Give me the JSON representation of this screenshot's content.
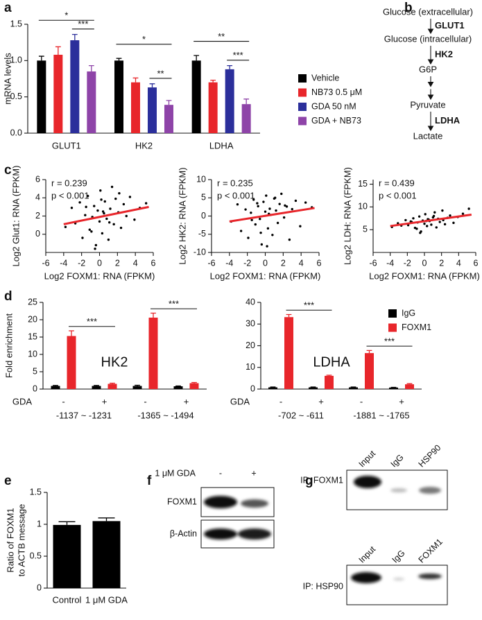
{
  "panel_labels": [
    "a",
    "b",
    "c",
    "d",
    "e",
    "f",
    "g"
  ],
  "pathway": {
    "steps": [
      "Glucose (extracellular)",
      "Glucose (intracellular)",
      "G6P",
      "Pyruvate",
      "Lactate"
    ],
    "reactions": [
      {
        "from": 0,
        "to": 1,
        "enzyme": "GLUT1"
      },
      {
        "from": 1,
        "to": 2,
        "enzyme": "HK2"
      },
      {
        "from": 2,
        "to": 3
      },
      {
        "from": 3,
        "to": 4,
        "enzyme": "LDHA"
      }
    ]
  },
  "blot_f": {
    "treatment": "1 μM GDA",
    "lanes": [
      "-",
      "+"
    ],
    "rows": [
      "FOXM1",
      "β-Actin"
    ]
  },
  "blot_g": {
    "panels": [
      {
        "label": "IP: FOXM1",
        "lanes": [
          "Input",
          "IgG",
          "HSP90"
        ]
      },
      {
        "label": "IP: HSP90",
        "lanes": [
          "Input",
          "IgG",
          "FOXM1"
        ]
      }
    ]
  },
  "chart_data": [
    {
      "type": "bar",
      "ylabel": "mRNA levels",
      "categories": [
        "GLUT1",
        "HK2",
        "LDHA"
      ],
      "series": [
        {
          "name": "Vehicle",
          "color": "#000000",
          "values": [
            1.0,
            1.0,
            1.0
          ],
          "errors": [
            0.06,
            0.03,
            0.07
          ]
        },
        {
          "name": "NB73 0.5 μM",
          "color": "#e8262b",
          "values": [
            1.08,
            0.7,
            0.7
          ],
          "errors": [
            0.11,
            0.06,
            0.03
          ]
        },
        {
          "name": "GDA 50 nM",
          "color": "#2b2f9b",
          "values": [
            1.28,
            0.63,
            0.88
          ],
          "errors": [
            0.08,
            0.05,
            0.05
          ]
        },
        {
          "name": "GDA + NB73",
          "color": "#8e44a8",
          "values": [
            0.85,
            0.39,
            0.4
          ],
          "errors": [
            0.08,
            0.06,
            0.07
          ]
        }
      ],
      "ylim": [
        0,
        1.5
      ],
      "yticks": [
        {
          "value": 0,
          "label": "0.0"
        },
        0.5,
        {
          "value": 1,
          "label": "1.0"
        },
        1.5
      ],
      "legend": "right",
      "significance": [
        {
          "category": 0,
          "series": [
            0,
            3
          ],
          "label": "*"
        },
        {
          "category": 0,
          "series": [
            2,
            3
          ],
          "label": "***"
        },
        {
          "category": 1,
          "series": [
            0,
            3
          ],
          "label": "*"
        },
        {
          "category": 1,
          "series": [
            2,
            3
          ],
          "label": "**"
        },
        {
          "category": 2,
          "series": [
            0,
            3
          ],
          "label": "**"
        },
        {
          "category": 2,
          "series": [
            2,
            3
          ],
          "label": "***"
        }
      ]
    },
    {
      "type": "scatter",
      "xlabel": "Log2 FOXM1: RNA (FPKM)",
      "ylabel": "Log2 Glut1: RNA (FPKM)",
      "annotations": [
        "r = 0.239",
        "p < 0.001"
      ],
      "color": "#000000",
      "x": [
        -3.8,
        -3.1,
        -2.7,
        -2.2,
        -1.9,
        -1.6,
        -1.3,
        -1.1,
        -0.8,
        -0.6,
        -0.4,
        -0.2,
        0,
        0.1,
        0.3,
        0.5,
        0.6,
        0.8,
        1,
        1.2,
        1.4,
        1.6,
        1.8,
        2.1,
        2.4,
        2.7,
        3,
        3.4,
        3.9,
        4.5,
        5.2,
        -0.5,
        0.4,
        1.1,
        -1.5,
        2.2,
        0.2,
        -0.9
      ],
      "y": [
        0.8,
        2.9,
        1.2,
        3.5,
        -0.4,
        2.1,
        4.2,
        0.5,
        1.9,
        3.1,
        -1.2,
        2.6,
        1.4,
        4.8,
        0.1,
        2.3,
        3.6,
        1.7,
        -0.6,
        2.8,
        5.2,
        1.1,
        3.9,
        2.4,
        0.7,
        3.3,
        2.0,
        4.1,
        1.6,
        2.9,
        3.4,
        -1.6,
        2.5,
        1.3,
        3.0,
        4.5,
        3.8,
        0.3
      ],
      "trend": {
        "x": [
          -4,
          5.5
        ],
        "y": [
          1.1,
          3.0
        ],
        "color": "#e8262b"
      },
      "xlim": [
        -6,
        6
      ],
      "xticks": [
        -6,
        -4,
        -2,
        0,
        2,
        4,
        6
      ],
      "ylim": [
        -2,
        6
      ],
      "yticks": [
        0,
        2,
        4,
        6
      ]
    },
    {
      "type": "scatter",
      "xlabel": "Log2 FOXM1: RNA (FPKM)",
      "ylabel": "Log2 HK2: RNA (FPKM)",
      "annotations": [
        "r = 0.235",
        "p < 0.001"
      ],
      "color": "#000000",
      "x": [
        -3.8,
        -3.1,
        -2.7,
        -2.2,
        -1.9,
        -1.6,
        -1.3,
        -1.1,
        -0.8,
        -0.6,
        -0.4,
        -0.2,
        0,
        0.1,
        0.3,
        0.5,
        0.6,
        0.8,
        1,
        1.2,
        1.4,
        1.6,
        1.8,
        2.1,
        2.4,
        2.7,
        3,
        3.4,
        3.9,
        4.5,
        5.2,
        -0.5,
        0.4,
        1.1,
        -1.5,
        2.2,
        0.2,
        -0.9
      ],
      "y": [
        -1.5,
        3.2,
        -4.1,
        1.8,
        -6.0,
        0.9,
        4.5,
        -2.3,
        2.7,
        -0.8,
        -7.8,
        3.9,
        1.2,
        5.6,
        -3.4,
        2.0,
        0.3,
        -5.2,
        4.8,
        1.5,
        -1.9,
        3.3,
        6.1,
        -0.4,
        2.6,
        -6.5,
        1.9,
        4.2,
        -2.8,
        3.7,
        2.4,
        -4.6,
        0.6,
        5.0,
        -1.1,
        2.9,
        -8.3,
        3.5
      ],
      "trend": {
        "x": [
          -4,
          5.5
        ],
        "y": [
          -1.5,
          2.2
        ],
        "color": "#e8262b"
      },
      "xlim": [
        -6,
        6
      ],
      "xticks": [
        -6,
        -4,
        -2,
        0,
        2,
        4,
        6
      ],
      "ylim": [
        -10,
        10
      ],
      "yticks": [
        -10,
        -5,
        0,
        5,
        10
      ]
    },
    {
      "type": "scatter",
      "xlabel": "Log2 FOXM1: RNA (FPKM)",
      "ylabel": "Log2 LDH: RNA (FPKM)",
      "annotations": [
        "r = 0.439",
        "p < 0.001"
      ],
      "color": "#000000",
      "x": [
        -3.8,
        -3.1,
        -2.7,
        -2.2,
        -1.9,
        -1.6,
        -1.3,
        -1.1,
        -0.8,
        -0.6,
        -0.4,
        -0.2,
        0,
        0.1,
        0.3,
        0.5,
        0.6,
        0.8,
        1,
        1.2,
        1.4,
        1.6,
        1.8,
        2.1,
        2.4,
        2.7,
        3,
        3.4,
        3.9,
        4.5,
        5.2,
        -0.5,
        0.4,
        1.1,
        -1.5,
        2.2,
        0.2,
        -0.9
      ],
      "y": [
        5.6,
        6.4,
        5.9,
        7.1,
        6.0,
        6.8,
        7.5,
        5.4,
        6.6,
        7.9,
        4.6,
        7.0,
        6.3,
        8.4,
        5.8,
        7.2,
        6.9,
        6.1,
        7.7,
        8.8,
        5.5,
        7.4,
        6.7,
        9.2,
        6.2,
        7.6,
        8.1,
        6.5,
        7.8,
        8.5,
        9.6,
        4.3,
        7.3,
        8.0,
        6.7,
        7.1,
        6.9,
        5.2
      ],
      "trend": {
        "x": [
          -4,
          5.5
        ],
        "y": [
          5.8,
          8.3
        ],
        "color": "#e8262b"
      },
      "xlim": [
        -6,
        6
      ],
      "xticks": [
        -6,
        -4,
        -2,
        0,
        2,
        4,
        6
      ],
      "ylim": [
        0,
        16
      ],
      "yticks": [
        5,
        10,
        15
      ]
    },
    {
      "type": "bar",
      "ylabel": "Fold enrichment",
      "gene": "HK2",
      "row_label": "GDA",
      "categories": [
        "-",
        "+",
        "-",
        "+"
      ],
      "groups": [
        {
          "label": "-1137 ~ -1231",
          "categories": [
            0,
            1
          ]
        },
        {
          "label": "-1365 ~ -1494",
          "categories": [
            2,
            3
          ]
        }
      ],
      "series": [
        {
          "color": "#000000",
          "values": [
            0.9,
            0.9,
            0.9,
            0.8
          ],
          "errors": [
            0.15,
            0.15,
            0.2,
            0.1
          ]
        },
        {
          "color": "#e8262b",
          "values": [
            15.3,
            1.5,
            20.6,
            1.7
          ],
          "errors": [
            1.5,
            0.2,
            1.3,
            0.2
          ]
        }
      ],
      "ylim": [
        0,
        25
      ],
      "yticks": [
        0,
        5,
        10,
        15,
        20,
        25
      ],
      "significance": [
        {
          "series": 1,
          "categories": [
            0,
            1
          ],
          "label": "***"
        },
        {
          "series": 1,
          "categories": [
            2,
            3
          ],
          "label": "***"
        }
      ]
    },
    {
      "type": "bar",
      "gene": "LDHA",
      "row_label": "GDA",
      "categories": [
        "-",
        "+",
        "-",
        "+"
      ],
      "groups": [
        {
          "label": "-702 ~ -611",
          "categories": [
            0,
            1
          ]
        },
        {
          "label": "-1881 ~ -1765",
          "categories": [
            2,
            3
          ]
        }
      ],
      "series": [
        {
          "name": "IgG",
          "color": "#000000",
          "values": [
            0.8,
            0.8,
            0.8,
            0.7
          ],
          "errors": [
            0.15,
            0.15,
            0.15,
            0.1
          ]
        },
        {
          "name": "FOXM1",
          "color": "#e8262b",
          "values": [
            33.2,
            6.1,
            16.6,
            2.2
          ],
          "errors": [
            1.2,
            0.3,
            1.2,
            0.3
          ]
        }
      ],
      "ylim": [
        0,
        40
      ],
      "yticks": [
        0,
        10,
        20,
        30,
        40
      ],
      "legend": "right",
      "significance": [
        {
          "series": 1,
          "categories": [
            0,
            1
          ],
          "label": "***"
        },
        {
          "series": 1,
          "categories": [
            2,
            3
          ],
          "label": "***"
        }
      ]
    },
    {
      "type": "bar",
      "ylabel": [
        "Ratio of FOXM1",
        "to ACTB message"
      ],
      "categories": [
        "Control",
        "1 μM GDA"
      ],
      "values": [
        0.99,
        1.05
      ],
      "errors": [
        0.05,
        0.05
      ],
      "color": "#000000",
      "ylim": [
        0,
        1.5
      ],
      "yticks": [
        0,
        0.5,
        1,
        1.5
      ]
    }
  ]
}
